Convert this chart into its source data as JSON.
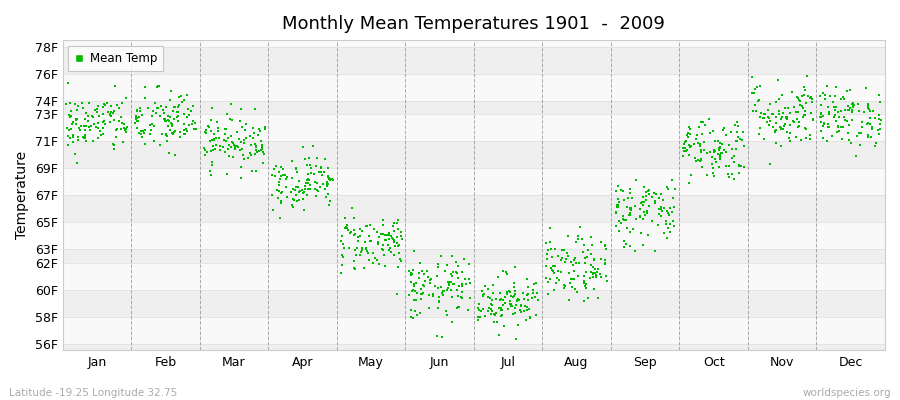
{
  "title": "Monthly Mean Temperatures 1901  -  2009",
  "ylabel": "Temperature",
  "xlabel_labels": [
    "Jan",
    "Feb",
    "Mar",
    "Apr",
    "May",
    "Jun",
    "Jul",
    "Aug",
    "Sep",
    "Oct",
    "Nov",
    "Dec"
  ],
  "footer_left": "Latitude -19.25 Longitude 32.75",
  "footer_right": "worldspecies.org",
  "legend_label": "Mean Temp",
  "dot_color": "#00bb00",
  "bg_color": "#ffffff",
  "band_color_light": "#efefef",
  "band_color_white": "#f9f9f9",
  "ylim": [
    55.5,
    78.5
  ],
  "ytick_values": [
    56,
    58,
    60,
    62,
    63,
    65,
    67,
    69,
    71,
    73,
    74,
    76,
    78
  ],
  "ytick_labels": [
    "56F",
    "58F",
    "60F",
    "62F",
    "63F",
    "65F",
    "67F",
    "69F",
    "71F",
    "73F",
    "74F",
    "76F",
    "78F"
  ],
  "years": 109,
  "monthly_means": [
    72.3,
    72.5,
    71.0,
    68.0,
    63.5,
    60.0,
    59.2,
    61.5,
    65.8,
    70.5,
    73.0,
    72.8
  ],
  "monthly_stds": [
    1.1,
    1.2,
    1.0,
    1.0,
    1.1,
    1.2,
    1.0,
    1.2,
    1.3,
    1.2,
    1.3,
    1.1
  ],
  "seed": 42,
  "dashed_line_color": "#888888",
  "grid_line_color": "#dddddd"
}
